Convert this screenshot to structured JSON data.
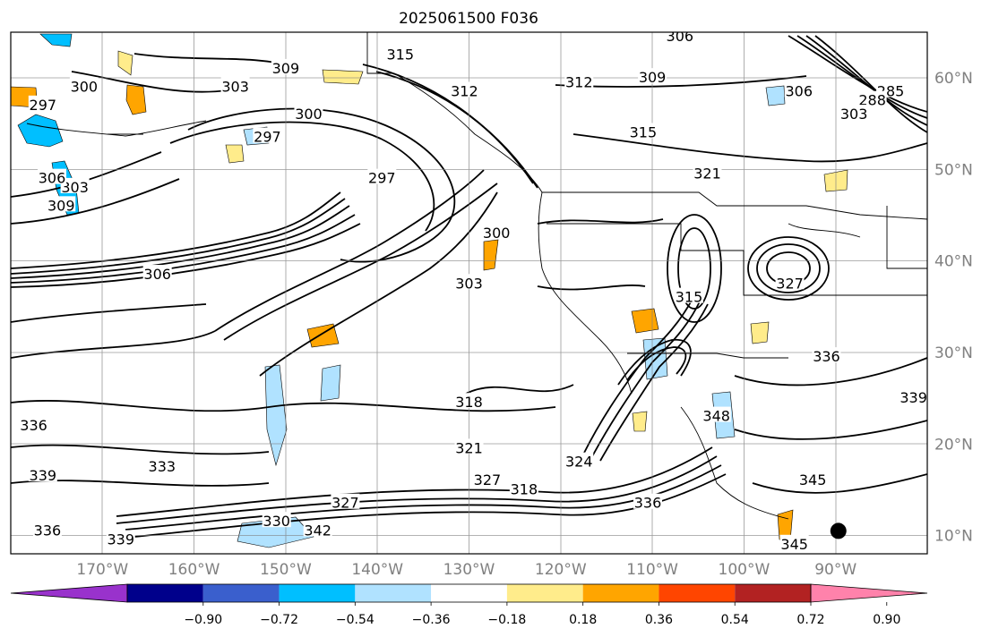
{
  "title": "2025061500 F036",
  "map": {
    "lon_range": [
      -180,
      -80
    ],
    "lat_range": [
      8,
      65
    ],
    "lon_ticks": [
      {
        "value": -170,
        "label": "170°W"
      },
      {
        "value": -160,
        "label": "160°W"
      },
      {
        "value": -150,
        "label": "150°W"
      },
      {
        "value": -140,
        "label": "140°W"
      },
      {
        "value": -130,
        "label": "130°W"
      },
      {
        "value": -120,
        "label": "120°W"
      },
      {
        "value": -110,
        "label": "110°W"
      },
      {
        "value": -100,
        "label": "100°W"
      },
      {
        "value": -90,
        "label": "90°W"
      }
    ],
    "lat_ticks": [
      {
        "value": 60,
        "label": "60°N"
      },
      {
        "value": 50,
        "label": "50°N"
      },
      {
        "value": 40,
        "label": "40°N"
      },
      {
        "value": 30,
        "label": "30°N"
      },
      {
        "value": 20,
        "label": "20°N"
      },
      {
        "value": 10,
        "label": "10°N"
      }
    ],
    "contour_labels": [
      {
        "text": "300",
        "lon": -172,
        "lat": 59
      },
      {
        "text": "297",
        "lon": -176.5,
        "lat": 57
      },
      {
        "text": "303",
        "lon": -155.5,
        "lat": 59
      },
      {
        "text": "309",
        "lon": -150,
        "lat": 61
      },
      {
        "text": "300",
        "lon": -147.5,
        "lat": 56
      },
      {
        "text": "297",
        "lon": -152,
        "lat": 53.5
      },
      {
        "text": "315",
        "lon": -137.5,
        "lat": 62.5
      },
      {
        "text": "312",
        "lon": -130.5,
        "lat": 58.5
      },
      {
        "text": "312",
        "lon": -118,
        "lat": 59.5
      },
      {
        "text": "309",
        "lon": -110,
        "lat": 60
      },
      {
        "text": "306",
        "lon": -107,
        "lat": 64.5
      },
      {
        "text": "306",
        "lon": -94,
        "lat": 58.5
      },
      {
        "text": "285",
        "lon": -84,
        "lat": 58.5
      },
      {
        "text": "288",
        "lon": -86,
        "lat": 57.5
      },
      {
        "text": "303",
        "lon": -88,
        "lat": 56
      },
      {
        "text": "315",
        "lon": -111,
        "lat": 54
      },
      {
        "text": "321",
        "lon": -104,
        "lat": 49.5
      },
      {
        "text": "297",
        "lon": -139.5,
        "lat": 49
      },
      {
        "text": "303",
        "lon": -173,
        "lat": 48
      },
      {
        "text": "309",
        "lon": -174.5,
        "lat": 46
      },
      {
        "text": "306",
        "lon": -175.5,
        "lat": 49
      },
      {
        "text": "306",
        "lon": -164,
        "lat": 38.5
      },
      {
        "text": "300",
        "lon": -127,
        "lat": 43
      },
      {
        "text": "303",
        "lon": -130,
        "lat": 37.5
      },
      {
        "text": "315",
        "lon": -106,
        "lat": 36
      },
      {
        "text": "327",
        "lon": -95,
        "lat": 37.5
      },
      {
        "text": "336",
        "lon": -91,
        "lat": 29.5
      },
      {
        "text": "339",
        "lon": -81.5,
        "lat": 25
      },
      {
        "text": "348",
        "lon": -103,
        "lat": 23
      },
      {
        "text": "318",
        "lon": -130,
        "lat": 24.5
      },
      {
        "text": "321",
        "lon": -130,
        "lat": 19.5
      },
      {
        "text": "324",
        "lon": -118,
        "lat": 18
      },
      {
        "text": "327",
        "lon": -128,
        "lat": 16
      },
      {
        "text": "318",
        "lon": -124,
        "lat": 15
      },
      {
        "text": "336",
        "lon": -110.5,
        "lat": 13.5
      },
      {
        "text": "345",
        "lon": -92.5,
        "lat": 16
      },
      {
        "text": "345",
        "lon": -94.5,
        "lat": 9
      },
      {
        "text": "327",
        "lon": -143.5,
        "lat": 13.5
      },
      {
        "text": "330",
        "lon": -151,
        "lat": 11.5
      },
      {
        "text": "342",
        "lon": -146.5,
        "lat": 10.5
      },
      {
        "text": "339",
        "lon": -168,
        "lat": 9.5
      },
      {
        "text": "336",
        "lon": -176,
        "lat": 10.5
      },
      {
        "text": "339",
        "lon": -176.5,
        "lat": 16.5
      },
      {
        "text": "333",
        "lon": -163.5,
        "lat": 17.5
      },
      {
        "text": "336",
        "lon": -177.5,
        "lat": 22
      }
    ],
    "marker": {
      "name": "location-marker",
      "lon": -89.7,
      "lat": 10.5
    }
  },
  "colorbar": {
    "colors": [
      "#9932cc",
      "#00008b",
      "#3a5fcd",
      "#00bfff",
      "#b0e2ff",
      "#ffffff",
      "#ffec8b",
      "#ffa500",
      "#ff4500",
      "#b22222",
      "#ff82ab"
    ],
    "labels": [
      "−0.90",
      "−0.72",
      "−0.54",
      "−0.36",
      "−0.18",
      "0.18",
      "0.36",
      "0.54",
      "0.72",
      "0.90"
    ]
  }
}
